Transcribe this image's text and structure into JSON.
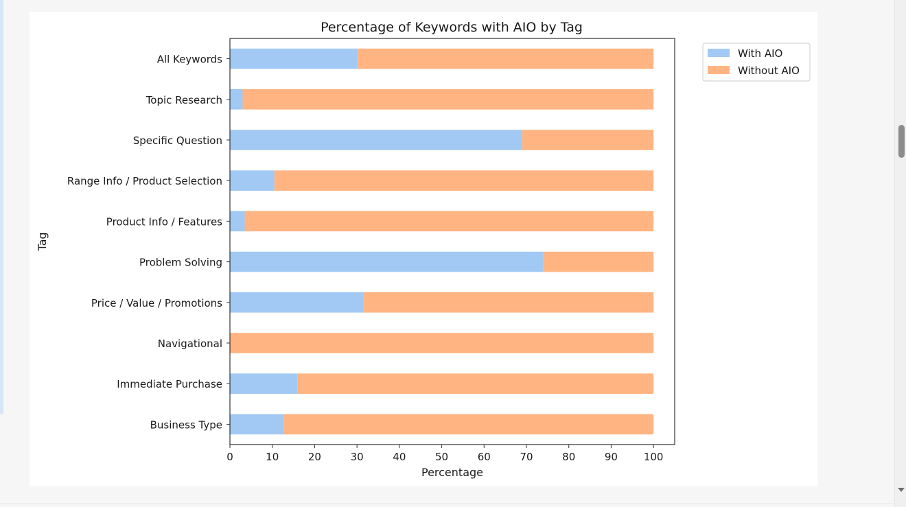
{
  "colors": {
    "with_aio": "#a1c9f4",
    "without_aio": "#ffb482",
    "axis": "#333333"
  },
  "chart_data": {
    "type": "bar",
    "orientation": "horizontal",
    "stacked": true,
    "title": "Percentage of Keywords with AIO by Tag",
    "xlabel": "Percentage",
    "ylabel": "Tag",
    "xlim": [
      0,
      105
    ],
    "xticks": [
      0,
      10,
      20,
      30,
      40,
      50,
      60,
      70,
      80,
      90,
      100
    ],
    "grid": false,
    "legend_position": "outside-top-right",
    "categories": [
      "All Keywords",
      "Topic Research",
      "Specific Question",
      "Range Info / Product Selection",
      "Product Info / Features",
      "Problem Solving",
      "Price / Value / Promotions",
      "Navigational",
      "Immediate Purchase",
      "Business Type"
    ],
    "series": [
      {
        "name": "With AIO",
        "color": "#a1c9f4",
        "values": [
          30,
          3,
          69,
          10.5,
          3.5,
          74,
          31.5,
          0,
          16,
          12.5
        ]
      },
      {
        "name": "Without AIO",
        "color": "#ffb482",
        "values": [
          70,
          97,
          31,
          89.5,
          96.5,
          26,
          68.5,
          100,
          84,
          87.5
        ]
      }
    ]
  }
}
